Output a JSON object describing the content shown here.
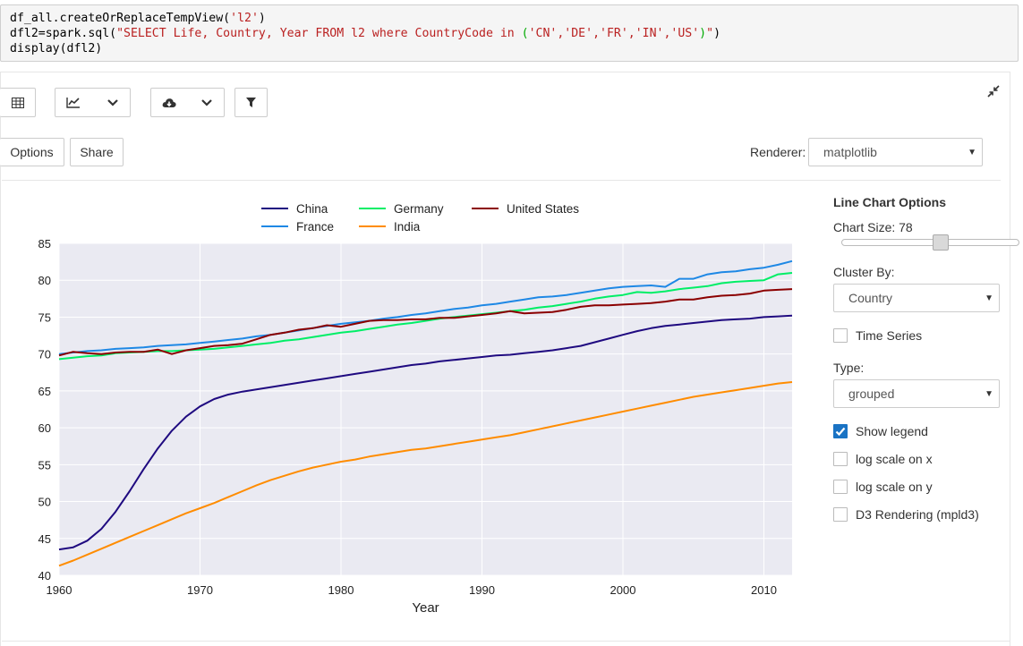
{
  "code": {
    "line1_a": "df_all.createOrReplaceTempView(",
    "line1_str": "'l2'",
    "line1_b": ")",
    "line2_a": "dfl2=spark.sql(",
    "line2_str": "\"SELECT Life, Country, Year FROM l2 where CountryCode in ",
    "line2_paren_open": "(",
    "line2_list": "'CN','DE','FR','IN','US'",
    "line2_paren_close": ")",
    "line2_str_end": "\"",
    "line2_b": ")",
    "line3": "display(dfl2)"
  },
  "toolbar": {
    "table_icon": "table-icon",
    "chart_icon": "line-chart-icon",
    "download_icon": "cloud-download-icon",
    "filter_icon": "filter-icon",
    "collapse_icon": "collapse-icon"
  },
  "buttons": {
    "options": "Options",
    "share": "Share"
  },
  "renderer": {
    "label": "Renderer:",
    "value": "matplotlib"
  },
  "panel": {
    "title": "Line Chart Options",
    "chart_size_label": "Chart Size: 78",
    "chart_size": 78,
    "cluster_by_label": "Cluster By:",
    "cluster_by_value": "Country",
    "time_series_label": "Time Series",
    "time_series_checked": false,
    "type_label": "Type:",
    "type_value": "grouped",
    "show_legend_label": "Show legend",
    "show_legend_checked": true,
    "log_x_label": "log scale on x",
    "log_x_checked": false,
    "log_y_label": "log scale on y",
    "log_y_checked": false,
    "d3_label": "D3 Rendering (mpld3)",
    "d3_checked": false
  },
  "chart_data": {
    "type": "line",
    "xlabel": "Year",
    "ylabel": "",
    "xlim": [
      1960,
      2012
    ],
    "ylim": [
      40,
      85
    ],
    "xticks": [
      1960,
      1970,
      1980,
      1990,
      2000,
      2010
    ],
    "yticks": [
      40,
      45,
      50,
      55,
      60,
      65,
      70,
      75,
      80,
      85
    ],
    "grid": true,
    "legend": "top-center",
    "x": [
      1960,
      1961,
      1962,
      1963,
      1964,
      1965,
      1966,
      1967,
      1968,
      1969,
      1970,
      1971,
      1972,
      1973,
      1974,
      1975,
      1976,
      1977,
      1978,
      1979,
      1980,
      1981,
      1982,
      1983,
      1984,
      1985,
      1986,
      1987,
      1988,
      1989,
      1990,
      1991,
      1992,
      1993,
      1994,
      1995,
      1996,
      1997,
      1998,
      1999,
      2000,
      2001,
      2002,
      2003,
      2004,
      2005,
      2006,
      2007,
      2008,
      2009,
      2010,
      2011,
      2012
    ],
    "series": [
      {
        "name": "China",
        "color": "#1f0a80",
        "values": [
          43.5,
          43.8,
          44.7,
          46.3,
          48.6,
          51.4,
          54.4,
          57.2,
          59.6,
          61.5,
          62.9,
          63.9,
          64.5,
          64.9,
          65.2,
          65.5,
          65.8,
          66.1,
          66.4,
          66.7,
          67.0,
          67.3,
          67.6,
          67.9,
          68.2,
          68.5,
          68.7,
          69.0,
          69.2,
          69.4,
          69.6,
          69.8,
          69.9,
          70.1,
          70.3,
          70.5,
          70.8,
          71.1,
          71.6,
          72.1,
          72.6,
          73.1,
          73.5,
          73.8,
          74.0,
          74.2,
          74.4,
          74.6,
          74.7,
          74.8,
          75.0,
          75.1,
          75.2
        ]
      },
      {
        "name": "France",
        "color": "#1e88e5",
        "values": [
          70.0,
          70.2,
          70.4,
          70.5,
          70.7,
          70.8,
          70.9,
          71.1,
          71.2,
          71.3,
          71.5,
          71.7,
          71.9,
          72.1,
          72.4,
          72.6,
          72.9,
          73.2,
          73.5,
          73.8,
          74.1,
          74.3,
          74.5,
          74.8,
          75.0,
          75.3,
          75.5,
          75.8,
          76.1,
          76.3,
          76.6,
          76.8,
          77.1,
          77.4,
          77.7,
          77.8,
          78.0,
          78.3,
          78.6,
          78.9,
          79.1,
          79.2,
          79.3,
          79.1,
          80.2,
          80.2,
          80.8,
          81.1,
          81.2,
          81.5,
          81.7,
          82.1,
          82.6
        ]
      },
      {
        "name": "Germany",
        "color": "#00ee66",
        "values": [
          69.3,
          69.5,
          69.7,
          69.8,
          70.1,
          70.2,
          70.3,
          70.4,
          70.4,
          70.5,
          70.6,
          70.7,
          70.9,
          71.1,
          71.3,
          71.5,
          71.8,
          72.0,
          72.3,
          72.6,
          72.9,
          73.1,
          73.4,
          73.7,
          74.0,
          74.2,
          74.5,
          74.8,
          75.0,
          75.2,
          75.4,
          75.6,
          75.8,
          76.0,
          76.3,
          76.5,
          76.8,
          77.1,
          77.5,
          77.8,
          78.0,
          78.4,
          78.3,
          78.5,
          78.8,
          79.0,
          79.2,
          79.6,
          79.8,
          79.9,
          80.0,
          80.8,
          81.0
        ]
      },
      {
        "name": "India",
        "color": "#ff8c00",
        "values": [
          41.3,
          42.0,
          42.8,
          43.6,
          44.4,
          45.2,
          46.0,
          46.8,
          47.6,
          48.4,
          49.1,
          49.8,
          50.6,
          51.4,
          52.2,
          52.9,
          53.5,
          54.1,
          54.6,
          55.0,
          55.4,
          55.7,
          56.1,
          56.4,
          56.7,
          57.0,
          57.2,
          57.5,
          57.8,
          58.1,
          58.4,
          58.7,
          59.0,
          59.4,
          59.8,
          60.2,
          60.6,
          61.0,
          61.4,
          61.8,
          62.2,
          62.6,
          63.0,
          63.4,
          63.8,
          64.2,
          64.5,
          64.8,
          65.1,
          65.4,
          65.7,
          66.0,
          66.2
        ]
      },
      {
        "name": "United States",
        "color": "#8b0000",
        "values": [
          69.8,
          70.3,
          70.1,
          70.0,
          70.2,
          70.3,
          70.3,
          70.6,
          70.0,
          70.5,
          70.8,
          71.1,
          71.2,
          71.4,
          72.0,
          72.6,
          72.9,
          73.3,
          73.5,
          73.9,
          73.7,
          74.1,
          74.5,
          74.6,
          74.6,
          74.7,
          74.7,
          74.9,
          74.9,
          75.1,
          75.3,
          75.5,
          75.8,
          75.5,
          75.6,
          75.7,
          76.0,
          76.4,
          76.6,
          76.6,
          76.7,
          76.8,
          76.9,
          77.1,
          77.4,
          77.4,
          77.7,
          77.9,
          78.0,
          78.2,
          78.6,
          78.7,
          78.8
        ]
      }
    ]
  }
}
